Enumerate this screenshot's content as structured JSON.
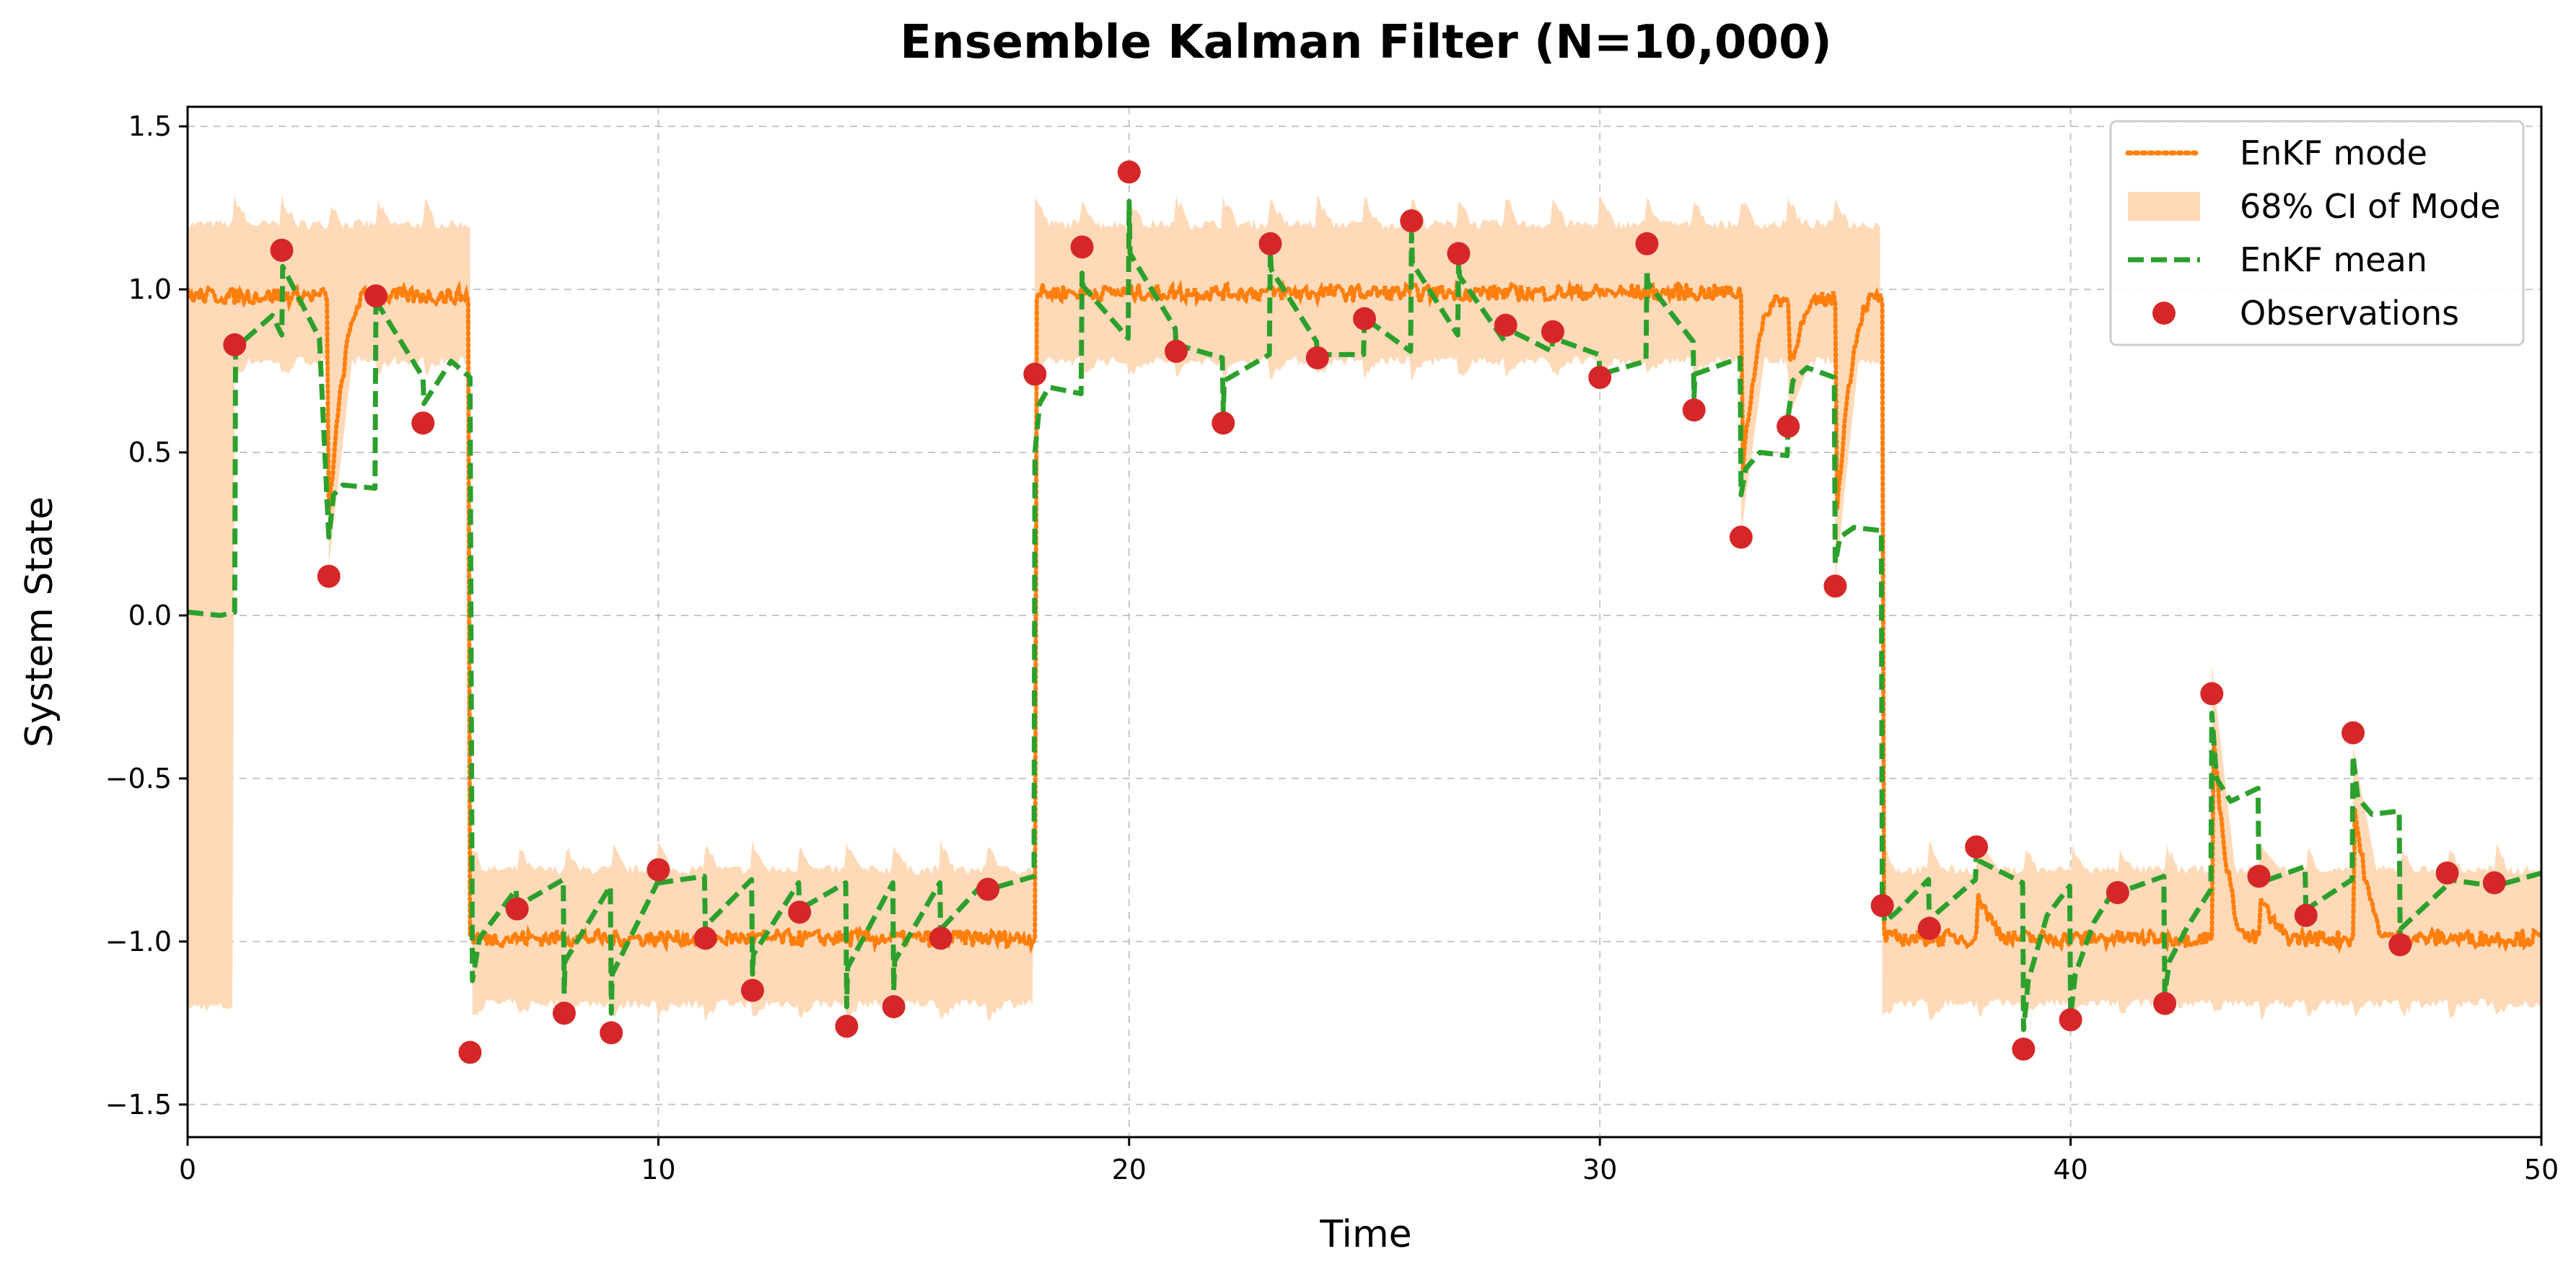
{
  "chart_data": {
    "type": "line",
    "title": "Ensemble Kalman Filter (N=10,000)",
    "xlabel": "Time",
    "ylabel": "System State",
    "xlim": [
      0,
      50
    ],
    "ylim": [
      -1.6,
      1.56
    ],
    "xticks": [
      0,
      10,
      20,
      30,
      40,
      50
    ],
    "yticks": [
      -1.5,
      -1.0,
      -0.5,
      0.0,
      0.5,
      1.0,
      1.5
    ],
    "xtick_labels": [
      "0",
      "10",
      "20",
      "30",
      "40",
      "50"
    ],
    "ytick_labels": [
      "−1.5",
      "−1.0",
      "−0.5",
      "0.0",
      "0.5",
      "1.0",
      "1.5"
    ],
    "grid": true,
    "legend_position": "top-right",
    "colors": {
      "mode": "#ff7f0e",
      "ci": "#ffd8b5",
      "mean": "#2ca02c",
      "obs": "#d62728"
    },
    "legend": [
      {
        "key": "mode",
        "label": "EnKF mode"
      },
      {
        "key": "ci",
        "label": "68% CI of Mode"
      },
      {
        "key": "mean",
        "label": "EnKF mean"
      },
      {
        "key": "obs",
        "label": "Observations"
      }
    ],
    "observations": {
      "name": "Observations",
      "x": [
        1,
        2,
        3,
        4,
        5,
        6,
        7,
        8,
        9,
        10,
        11,
        12,
        13,
        14,
        15,
        16,
        17,
        18,
        19,
        20,
        21,
        22,
        23,
        24,
        25,
        26,
        27,
        28,
        29,
        30,
        31,
        32,
        33,
        34,
        35,
        36,
        37,
        38,
        39,
        40,
        41,
        42,
        43,
        44,
        45,
        46,
        47,
        48,
        49
      ],
      "y": [
        0.83,
        1.12,
        0.12,
        0.98,
        0.59,
        -1.34,
        -0.9,
        -1.22,
        -1.28,
        -0.78,
        -0.99,
        -1.15,
        -0.91,
        -1.26,
        -1.2,
        -0.99,
        -0.84,
        0.74,
        1.13,
        1.36,
        0.81,
        0.59,
        1.14,
        0.79,
        0.91,
        1.21,
        1.11,
        0.89,
        0.87,
        0.73,
        1.14,
        0.63,
        0.24,
        0.58,
        0.09,
        -0.89,
        -0.96,
        -0.71,
        -1.33,
        -1.24,
        -0.85,
        -1.19,
        -0.24,
        -0.8,
        -0.92,
        -0.36,
        -1.01,
        -0.79,
        -0.82
      ]
    },
    "mean_series": {
      "name": "EnKF mean",
      "x": [
        0,
        0.7,
        1,
        1.02,
        1.8,
        2,
        2.02,
        2.8,
        3,
        3.1,
        3.3,
        3.98,
        4,
        4.02,
        5,
        5.02,
        5.6,
        6,
        6.05,
        6.2,
        6.98,
        7,
        7.02,
        7.98,
        8,
        8.02,
        8.98,
        9,
        9.02,
        9.98,
        10,
        10.02,
        10.98,
        11,
        11.02,
        11.98,
        12,
        12.02,
        12.98,
        13,
        13.02,
        13.98,
        14,
        14.02,
        14.98,
        15,
        15.02,
        15.98,
        16,
        16.02,
        16.98,
        17,
        17.02,
        17.98,
        18,
        18.1,
        18.3,
        18.98,
        19,
        19.02,
        19.98,
        20,
        20.02,
        20.98,
        21,
        21.02,
        21.98,
        22,
        22.02,
        22.98,
        23,
        23.02,
        23.98,
        24,
        24.02,
        24.98,
        25,
        25.02,
        25.98,
        26,
        26.02,
        26.98,
        27,
        27.02,
        27.98,
        28,
        28.02,
        28.98,
        29,
        29.02,
        29.98,
        30,
        30.02,
        30.98,
        31,
        31.02,
        31.98,
        32,
        32.02,
        32.98,
        33,
        33.1,
        33.4,
        33.98,
        34,
        34.1,
        34.4,
        34.98,
        35,
        35.1,
        35.4,
        35.98,
        36,
        36.05,
        36.3,
        36.98,
        37,
        37.02,
        37.98,
        38,
        38.02,
        38.98,
        39,
        39.1,
        39.5,
        39.98,
        40,
        40.1,
        40.5,
        40.98,
        41,
        41.02,
        41.98,
        42,
        42.1,
        42.5,
        42.98,
        43,
        43.1,
        43.4,
        43.98,
        44,
        44.02,
        44.98,
        45,
        45.02,
        45.98,
        46,
        46.1,
        46.4,
        46.98,
        47,
        47.02,
        47.98,
        48,
        48.02,
        48.98,
        49,
        49.02,
        50
      ],
      "y": [
        0.01,
        0.0,
        0.01,
        0.82,
        0.92,
        0.86,
        1.07,
        0.85,
        0.24,
        0.37,
        0.4,
        0.39,
        0.98,
        0.96,
        0.73,
        0.65,
        0.78,
        0.73,
        -1.12,
        -0.99,
        -0.84,
        -0.92,
        -0.89,
        -0.81,
        -1.16,
        -1.06,
        -0.83,
        -1.22,
        -1.1,
        -0.82,
        -0.8,
        -0.82,
        -0.8,
        -0.97,
        -0.95,
        -0.81,
        -1.1,
        -1.04,
        -0.82,
        -0.92,
        -0.9,
        -0.82,
        -1.2,
        -1.08,
        -0.82,
        -1.15,
        -1.06,
        -0.82,
        -0.99,
        -0.96,
        -0.81,
        -0.85,
        -0.84,
        -0.8,
        0.5,
        0.65,
        0.7,
        0.68,
        1.05,
        1.01,
        0.85,
        1.27,
        1.11,
        0.88,
        0.82,
        0.83,
        0.79,
        0.62,
        0.72,
        0.8,
        1.12,
        1.06,
        0.84,
        0.79,
        0.8,
        0.8,
        0.92,
        0.91,
        0.81,
        1.17,
        1.08,
        0.86,
        1.09,
        1.04,
        0.84,
        0.89,
        0.88,
        0.81,
        0.86,
        0.85,
        0.8,
        0.73,
        0.74,
        0.78,
        1.06,
        1.02,
        0.84,
        0.67,
        0.74,
        0.79,
        0.37,
        0.45,
        0.5,
        0.49,
        0.61,
        0.72,
        0.76,
        0.73,
        0.16,
        0.24,
        0.27,
        0.26,
        -0.87,
        -0.94,
        -0.91,
        -0.81,
        -0.95,
        -0.93,
        -0.81,
        -0.72,
        -0.75,
        -0.82,
        -1.27,
        -1.12,
        -0.92,
        -0.83,
        -1.23,
        -1.1,
        -0.94,
        -0.83,
        -0.86,
        -0.85,
        -0.8,
        -1.16,
        -1.06,
        -0.95,
        -0.84,
        -0.3,
        -0.5,
        -0.57,
        -0.53,
        -0.81,
        -0.82,
        -0.77,
        -0.92,
        -0.9,
        -0.81,
        -0.43,
        -0.56,
        -0.61,
        -0.6,
        -1.0,
        -0.96,
        -0.83,
        -0.8,
        -0.81,
        -0.83,
        -0.82,
        -0.83,
        -0.79
      ]
    },
    "mode_series": {
      "name": "EnKF mode",
      "segments": [
        {
          "x0": 0,
          "x1": 6,
          "level": 0.98
        },
        {
          "x0": 6,
          "x1": 18,
          "level": -0.99
        },
        {
          "x0": 18,
          "x1": 33,
          "level": 0.99
        },
        {
          "x0": 33,
          "x1": 36,
          "level": 0.97
        },
        {
          "x0": 36,
          "x1": 50,
          "level": -0.99
        }
      ],
      "excursions": [
        {
          "t": 3,
          "to": 0.3
        },
        {
          "t": 33,
          "to": 0.4
        },
        {
          "t": 34,
          "to": 0.75
        },
        {
          "t": 35,
          "to": 0.25
        },
        {
          "t": 38,
          "to": -0.83
        },
        {
          "t": 43,
          "to": -0.3
        },
        {
          "t": 44,
          "to": -0.85
        },
        {
          "t": 46,
          "to": -0.55
        }
      ]
    },
    "ci_band": {
      "name": "68% CI of Mode",
      "segments": [
        {
          "x0": 0,
          "x1": 1,
          "low": -1.2,
          "high": 1.2
        },
        {
          "x0": 1,
          "x1": 6,
          "low": 0.78,
          "high": 1.2
        },
        {
          "x0": 6,
          "x1": 18,
          "low": -1.19,
          "high": -0.78
        },
        {
          "x0": 18,
          "x1": 36,
          "low": 0.78,
          "high": 1.2
        },
        {
          "x0": 36,
          "x1": 50,
          "low": -1.19,
          "high": -0.78
        }
      ]
    }
  }
}
